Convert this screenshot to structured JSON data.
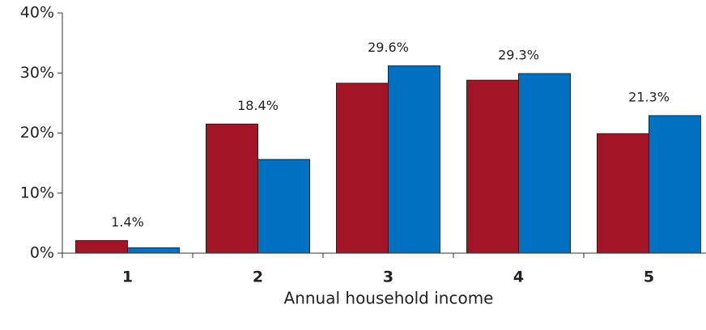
{
  "chart_data": {
    "type": "bar",
    "x_label": "Annual household income",
    "categories": [
      "1",
      "2",
      "3",
      "4",
      "5"
    ],
    "series": [
      {
        "color": "#a31526",
        "values": [
          2.1,
          21.5,
          28.3,
          28.8,
          19.9
        ]
      },
      {
        "color": "#0070c0",
        "values": [
          0.9,
          15.6,
          31.2,
          29.9,
          22.9
        ]
      }
    ],
    "group_labels": [
      "1.4%",
      "18.4%",
      "29.6%",
      "29.3%",
      "21.3%"
    ],
    "ylim": [
      0,
      40
    ],
    "yticks": [
      {
        "value": 0,
        "label": "0%"
      },
      {
        "value": 10,
        "label": "10%"
      },
      {
        "value": 20,
        "label": "20%"
      },
      {
        "value": 30,
        "label": "30%"
      },
      {
        "value": 40,
        "label": "40%"
      }
    ]
  }
}
